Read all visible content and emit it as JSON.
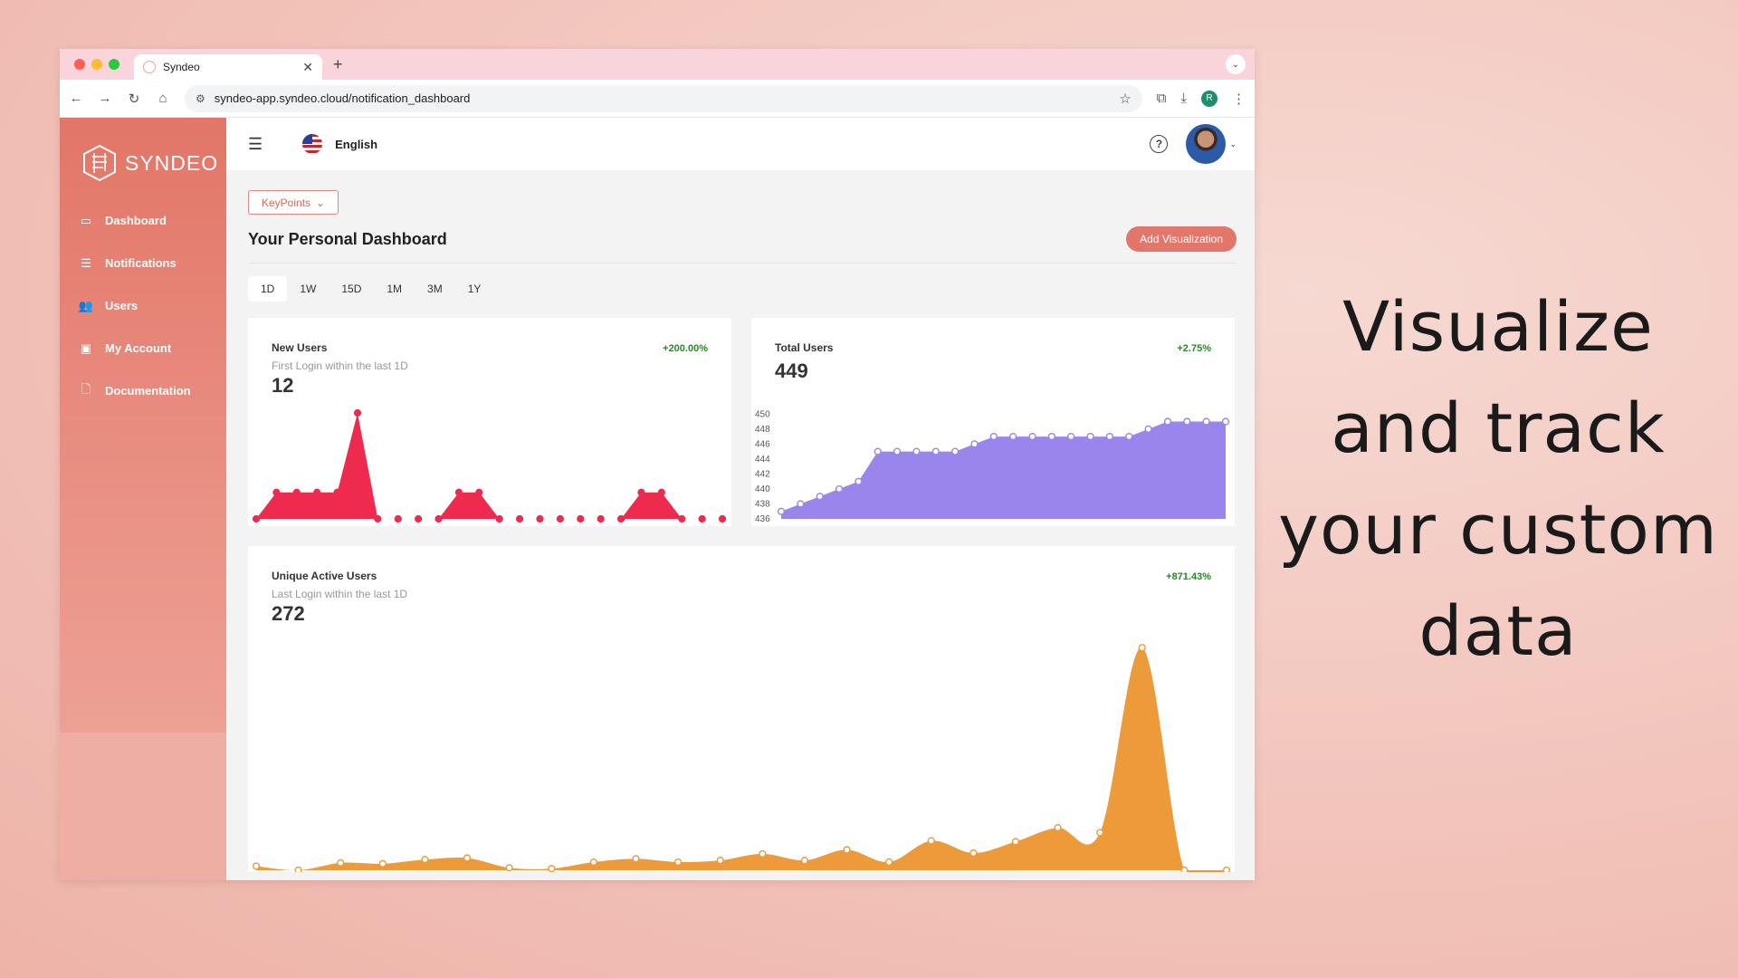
{
  "browser": {
    "tab_title": "Syndeo",
    "url": "syndeo-app.syndeo.cloud/notification_dashboard",
    "profile_initial": "R"
  },
  "sidebar": {
    "logo_text": "SYNDEO",
    "items": [
      {
        "label": "Dashboard",
        "icon": "monitor-icon"
      },
      {
        "label": "Notifications",
        "icon": "list-icon"
      },
      {
        "label": "Users",
        "icon": "users-icon"
      },
      {
        "label": "My Account",
        "icon": "account-icon"
      },
      {
        "label": "Documentation",
        "icon": "document-icon"
      }
    ]
  },
  "topbar": {
    "language": "English"
  },
  "dashboard": {
    "keypoints_label": "KeyPoints",
    "title": "Your Personal Dashboard",
    "add_button": "Add Visualization",
    "ranges": [
      "1D",
      "1W",
      "15D",
      "1M",
      "3M",
      "1Y"
    ],
    "active_range": "1D"
  },
  "cards": {
    "new_users": {
      "title": "New Users",
      "subtitle": "First Login within the last 1D",
      "value": "12",
      "change": "+200.00%"
    },
    "total_users": {
      "title": "Total Users",
      "value": "449",
      "change": "+2.75%"
    },
    "unique_active": {
      "title": "Unique Active Users",
      "subtitle": "Last Login within the last 1D",
      "value": "272",
      "change": "+871.43%"
    }
  },
  "colors": {
    "accent": "#e2766a",
    "new_users_fill": "#ee2b4f",
    "total_users_fill": "#9a85ec",
    "unique_active_fill": "#ec9a3a",
    "positive_change": "#1e8e1e"
  },
  "chart_data": [
    {
      "type": "area",
      "name": "New Users",
      "values": [
        0,
        1,
        1,
        1,
        1,
        4,
        0,
        0,
        0,
        0,
        1,
        1,
        0,
        0,
        0,
        0,
        0,
        0,
        0,
        1,
        1,
        0,
        0,
        0
      ],
      "ylim": [
        0,
        4
      ]
    },
    {
      "type": "area",
      "name": "Total Users",
      "yticks": [
        436,
        438,
        440,
        442,
        444,
        446,
        448,
        450
      ],
      "ylim": [
        436,
        451
      ],
      "values": [
        437,
        438,
        439,
        440,
        441,
        445,
        445,
        445,
        445,
        445,
        446,
        447,
        447,
        447,
        447,
        447,
        447,
        447,
        447,
        448,
        449,
        449,
        449,
        449
      ]
    },
    {
      "type": "area",
      "name": "Unique Active Users",
      "values": [
        5,
        0,
        9,
        8,
        13,
        15,
        3,
        2,
        10,
        14,
        10,
        12,
        20,
        12,
        25,
        10,
        36,
        21,
        35,
        52,
        46,
        272,
        0,
        0
      ],
      "ylim": [
        0,
        280
      ]
    }
  ],
  "tagline": [
    "Visualize",
    "and track",
    "your custom",
    "data"
  ]
}
